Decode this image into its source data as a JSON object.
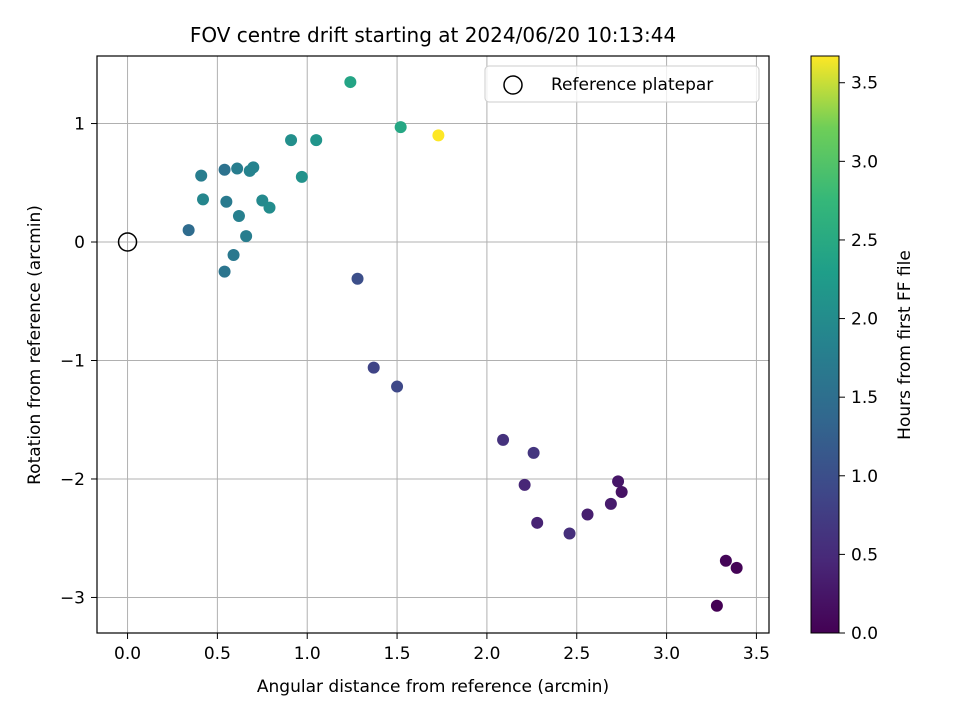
{
  "chart_data": {
    "type": "scatter",
    "title": "FOV centre drift starting at 2024/06/20 10:13:44",
    "xlabel": "Angular distance from reference (arcmin)",
    "ylabel": "Rotation from reference (arcmin)",
    "xlim": [
      -0.17,
      3.57
    ],
    "ylim": [
      -3.3,
      1.57
    ],
    "xticks": [
      0.0,
      0.5,
      1.0,
      1.5,
      2.0,
      2.5,
      3.0,
      3.5
    ],
    "xtick_labels": [
      "0.0",
      "0.5",
      "1.0",
      "1.5",
      "2.0",
      "2.5",
      "3.0",
      "3.5"
    ],
    "yticks": [
      -3,
      -2,
      -1,
      0,
      1
    ],
    "ytick_labels": [
      "−3",
      "−2",
      "−1",
      "0",
      "1"
    ],
    "grid": true,
    "legend": {
      "position": "top-right",
      "entries": [
        "Reference platepar"
      ]
    },
    "reference_point": {
      "x": 0.0,
      "y": 0.0
    },
    "colorbar": {
      "label": "Hours from first FF file",
      "range": [
        0.0,
        3.67
      ],
      "ticks": [
        0.0,
        0.5,
        1.0,
        1.5,
        2.0,
        2.5,
        3.0,
        3.5
      ],
      "tick_labels": [
        "0.0",
        "0.5",
        "1.0",
        "1.5",
        "2.0",
        "2.5",
        "3.0",
        "3.5"
      ],
      "colormap": "viridis"
    },
    "points": [
      {
        "x": 3.28,
        "y": -3.07,
        "hours": 0.0
      },
      {
        "x": 3.33,
        "y": -2.69,
        "hours": 0.05
      },
      {
        "x": 3.39,
        "y": -2.75,
        "hours": 0.02
      },
      {
        "x": 2.75,
        "y": -2.11,
        "hours": 0.2
      },
      {
        "x": 2.73,
        "y": -2.02,
        "hours": 0.25
      },
      {
        "x": 2.69,
        "y": -2.21,
        "hours": 0.3
      },
      {
        "x": 2.56,
        "y": -2.3,
        "hours": 0.35
      },
      {
        "x": 2.46,
        "y": -2.46,
        "hours": 0.55
      },
      {
        "x": 2.28,
        "y": -2.37,
        "hours": 0.4
      },
      {
        "x": 2.21,
        "y": -2.05,
        "hours": 0.45
      },
      {
        "x": 2.26,
        "y": -1.78,
        "hours": 0.65
      },
      {
        "x": 2.09,
        "y": -1.67,
        "hours": 0.6
      },
      {
        "x": 1.5,
        "y": -1.22,
        "hours": 0.9
      },
      {
        "x": 1.37,
        "y": -1.06,
        "hours": 0.85
      },
      {
        "x": 1.28,
        "y": -0.31,
        "hours": 1.0
      },
      {
        "x": 0.34,
        "y": 0.1,
        "hours": 1.45
      },
      {
        "x": 0.54,
        "y": -0.25,
        "hours": 1.6
      },
      {
        "x": 0.59,
        "y": -0.11,
        "hours": 1.65
      },
      {
        "x": 0.66,
        "y": 0.05,
        "hours": 1.75
      },
      {
        "x": 0.62,
        "y": 0.22,
        "hours": 1.8
      },
      {
        "x": 0.55,
        "y": 0.34,
        "hours": 1.7
      },
      {
        "x": 0.42,
        "y": 0.36,
        "hours": 1.9
      },
      {
        "x": 0.41,
        "y": 0.56,
        "hours": 1.75
      },
      {
        "x": 0.54,
        "y": 0.61,
        "hours": 1.55
      },
      {
        "x": 0.61,
        "y": 0.62,
        "hours": 1.75
      },
      {
        "x": 0.68,
        "y": 0.6,
        "hours": 1.85
      },
      {
        "x": 0.7,
        "y": 0.63,
        "hours": 1.85
      },
      {
        "x": 0.75,
        "y": 0.35,
        "hours": 1.95
      },
      {
        "x": 0.79,
        "y": 0.29,
        "hours": 2.0
      },
      {
        "x": 0.91,
        "y": 0.86,
        "hours": 2.05
      },
      {
        "x": 0.97,
        "y": 0.55,
        "hours": 2.1
      },
      {
        "x": 1.05,
        "y": 0.86,
        "hours": 2.15
      },
      {
        "x": 1.24,
        "y": 1.35,
        "hours": 2.4
      },
      {
        "x": 1.52,
        "y": 0.97,
        "hours": 2.45
      },
      {
        "x": 1.73,
        "y": 0.9,
        "hours": 3.67
      }
    ]
  }
}
